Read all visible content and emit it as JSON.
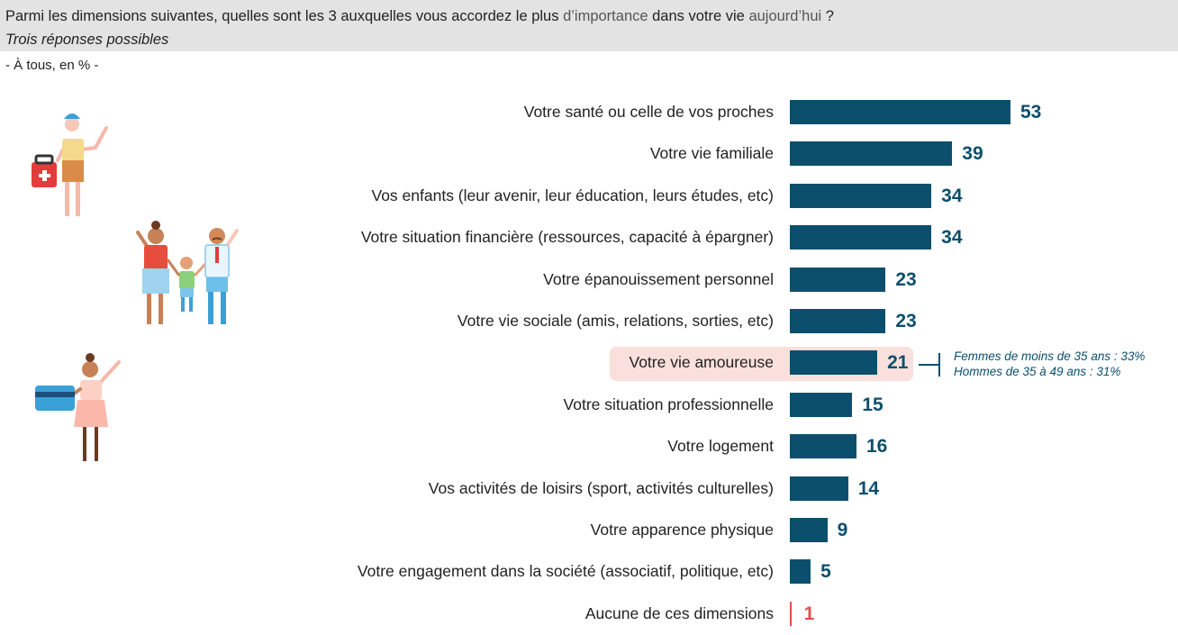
{
  "header": {
    "question_part1": "Parmi les dimensions suivantes, quelles sont les 3 auxquelles vous accordez le plus ",
    "question_part2": "d’importance",
    "question_part3": " dans votre vie ",
    "question_part4": "aujourd’hui",
    "question_part5": " ?",
    "subtitle": "Trois réponses possibles",
    "base": "- À tous, en % -"
  },
  "annotation": {
    "line1": "Femmes de moins de 35 ans : 33%",
    "line2": "Hommes de 35 à 49 ans : 31%"
  },
  "colors": {
    "bar": "#0b4f6c",
    "none_bar": "#e05050",
    "highlight_bg": "#fae0dc",
    "header_bg": "#e3e3e3"
  },
  "illustrations": [
    "person-with-first-aid-kit-icon",
    "family-icon",
    "woman-with-credit-card-icon"
  ],
  "chart_data": {
    "type": "bar",
    "orientation": "horizontal",
    "unit": "%",
    "categories": [
      "Votre santé ou celle de vos proches",
      "Votre vie familiale",
      "Vos enfants (leur avenir, leur éducation, leurs études, etc)",
      "Votre situation financière (ressources, capacité à épargner)",
      "Votre épanouissement personnel",
      "Votre vie sociale (amis, relations, sorties, etc)",
      "Votre vie amoureuse",
      "Votre situation professionnelle",
      "Votre logement",
      "Vos activités de loisirs (sport, activités culturelles)",
      "Votre apparence physique",
      "Votre engagement dans la société (associatif, politique, etc)",
      "Aucune de ces dimensions"
    ],
    "values": [
      53,
      39,
      34,
      34,
      23,
      23,
      21,
      15,
      16,
      14,
      9,
      5,
      1
    ],
    "value_labels": [
      "53",
      "39",
      "34",
      "34",
      "23",
      "23",
      "21",
      "15",
      "16",
      "14",
      "9",
      "5",
      "1"
    ],
    "highlighted_category": "Votre vie amoureuse",
    "xlim": [
      0,
      60
    ]
  }
}
